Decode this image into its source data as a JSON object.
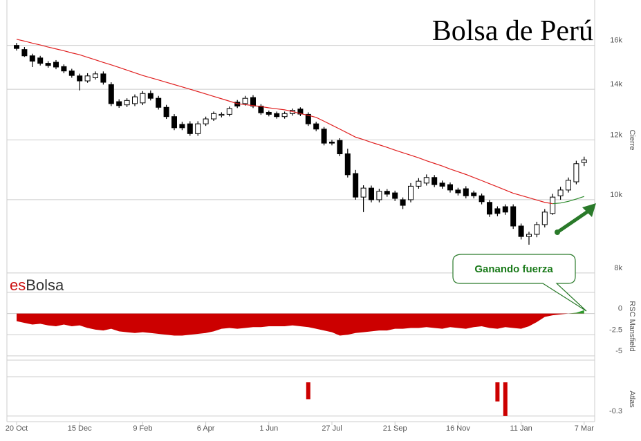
{
  "chart_data": [
    {
      "type": "candlestick",
      "title": "Bolsa de Perú",
      "logo": {
        "prefix": "es",
        "name": "Bolsa"
      },
      "y_label": "Cierre",
      "log_scale": true,
      "grid": true,
      "categories": [
        "20 Oct",
        null,
        null,
        null,
        null,
        null,
        null,
        null,
        "15 Dec",
        null,
        null,
        null,
        null,
        null,
        null,
        null,
        "9 Feb",
        null,
        null,
        null,
        null,
        null,
        null,
        null,
        "6 Apr",
        null,
        null,
        null,
        null,
        null,
        null,
        null,
        "1 Jun",
        null,
        null,
        null,
        null,
        null,
        null,
        null,
        "27 Jul",
        null,
        null,
        null,
        null,
        null,
        null,
        null,
        "21 Sep",
        null,
        null,
        null,
        null,
        null,
        null,
        null,
        "16 Nov",
        null,
        null,
        null,
        null,
        null,
        null,
        null,
        "11 Jan",
        null,
        null,
        null,
        null,
        null,
        null,
        null,
        "7 Mar"
      ],
      "open": [
        16000,
        15800,
        15500,
        15400,
        15150,
        15200,
        15000,
        14800,
        14580,
        14360,
        14500,
        14670,
        14200,
        13480,
        13350,
        13400,
        13430,
        13820,
        13620,
        13250,
        12880,
        12580,
        12600,
        12230,
        12600,
        12790,
        12930,
        12970,
        13460,
        13400,
        13650,
        13300,
        13050,
        13000,
        12880,
        13000,
        13180,
        12970,
        12600,
        12400,
        11920,
        11980,
        11500,
        10830,
        10080,
        10360,
        10000,
        10260,
        10210,
        10000,
        10000,
        10420,
        10520,
        10700,
        10520,
        10470,
        10300,
        10340,
        10210,
        10120,
        9920,
        9730,
        9790,
        9790,
        9230,
        8940,
        9000,
        9270,
        9590,
        10120,
        10300,
        10560,
        11200
      ],
      "high": [
        16120,
        15920,
        15600,
        15500,
        15250,
        15300,
        15100,
        14900,
        14680,
        14700,
        14780,
        14780,
        14300,
        13580,
        13620,
        13780,
        13920,
        13950,
        13720,
        13350,
        12980,
        12680,
        12700,
        12700,
        12880,
        13080,
        13050,
        13280,
        13550,
        13720,
        13750,
        13380,
        13120,
        13080,
        13080,
        13200,
        13250,
        13050,
        12680,
        12480,
        12000,
        12060,
        11680,
        10950,
        10450,
        10440,
        10340,
        10330,
        10280,
        10070,
        10520,
        10680,
        10800,
        10780,
        10600,
        10540,
        10370,
        10420,
        10280,
        10190,
        9990,
        9800,
        9860,
        9860,
        9300,
        9070,
        9350,
        9720,
        10180,
        10400,
        10700,
        11260,
        11400
      ],
      "low": [
        15750,
        15450,
        14980,
        15050,
        14950,
        14880,
        14700,
        14500,
        13950,
        14280,
        14420,
        14200,
        13300,
        13230,
        13260,
        13300,
        13340,
        13530,
        13160,
        12790,
        12360,
        12360,
        12150,
        12150,
        12520,
        12710,
        12850,
        12890,
        13220,
        13320,
        13220,
        12950,
        12890,
        12800,
        12800,
        12920,
        12900,
        12520,
        12320,
        11800,
        11800,
        11420,
        10700,
        10000,
        9630,
        9920,
        9920,
        10090,
        9960,
        9720,
        9920,
        10340,
        10440,
        10390,
        10340,
        10220,
        10130,
        10040,
        10040,
        9860,
        9490,
        9510,
        9550,
        9150,
        8860,
        8720,
        8920,
        9190,
        9550,
        10000,
        10220,
        10480,
        11080
      ],
      "close": [
        15850,
        15500,
        15250,
        15150,
        15050,
        14980,
        14800,
        14600,
        14360,
        14580,
        14670,
        14300,
        13400,
        13320,
        13530,
        13680,
        13820,
        13620,
        13250,
        12880,
        12450,
        12450,
        12230,
        12600,
        12790,
        13000,
        12970,
        13200,
        13300,
        13620,
        13300,
        13030,
        12970,
        12880,
        13000,
        13130,
        12980,
        12600,
        12400,
        11880,
        11880,
        11500,
        10790,
        10080,
        10360,
        10000,
        10260,
        10170,
        10040,
        9830,
        10420,
        10580,
        10700,
        10470,
        10420,
        10300,
        10210,
        10120,
        10120,
        9940,
        9570,
        9590,
        9630,
        9230,
        8940,
        9000,
        9270,
        9630,
        10080,
        10300,
        10610,
        11160,
        11290
      ],
      "up_color": "#ffffff",
      "down_color": "#000000",
      "series": [
        {
          "color": "#e02020",
          "values": [
            16300,
            16210,
            16110,
            16020,
            15920,
            15830,
            15740,
            15640,
            15550,
            15430,
            15310,
            15190,
            15080,
            14960,
            14840,
            14720,
            14600,
            14500,
            14400,
            14300,
            14200,
            14100,
            14000,
            13900,
            13800,
            13700,
            13600,
            13500,
            13400,
            13360,
            13320,
            13280,
            13230,
            13190,
            13150,
            13080,
            13000,
            12930,
            12850,
            12700,
            12550,
            12400,
            12250,
            12100,
            12010,
            11910,
            11820,
            11730,
            11630,
            11540,
            11450,
            11360,
            11260,
            11170,
            11080,
            10980,
            10890,
            10800,
            10700,
            10600,
            10500,
            10400,
            10300,
            10200,
            10130,
            10060,
            9990,
            9920,
            9880,
            null,
            null,
            null,
            null
          ]
        },
        {
          "color": "#2a8a2a",
          "values": [
            null,
            null,
            null,
            null,
            null,
            null,
            null,
            null,
            null,
            null,
            null,
            null,
            null,
            null,
            null,
            null,
            null,
            null,
            null,
            null,
            null,
            null,
            null,
            null,
            null,
            null,
            null,
            null,
            null,
            null,
            null,
            null,
            null,
            null,
            null,
            null,
            null,
            null,
            null,
            null,
            null,
            null,
            null,
            null,
            null,
            null,
            null,
            null,
            null,
            null,
            null,
            null,
            null,
            null,
            null,
            null,
            null,
            null,
            null,
            null,
            null,
            null,
            null,
            null,
            null,
            null,
            null,
            null,
            9880,
            9900,
            9950,
            10020,
            10100
          ]
        }
      ],
      "annotation": "Ganando fuerza",
      "annotation_color": "#1a7a1a",
      "ylim": [
        7915,
        18180
      ],
      "yticks": [
        {
          "value": 8000,
          "label": "8k"
        },
        {
          "value": 10000,
          "label": "10k"
        },
        {
          "value": 12000,
          "label": "12k"
        },
        {
          "value": 14000,
          "label": "14k"
        },
        {
          "value": 16000,
          "label": "16k"
        }
      ]
    },
    {
      "type": "area",
      "y_label": "RSC Mansfield",
      "grid": true,
      "color": "#cc0000",
      "positive_color": "#2a9a2a",
      "values": [
        -0.9,
        -1.1,
        -1.3,
        -1.2,
        -1.4,
        -1.5,
        -1.3,
        -1.5,
        -1.4,
        -1.7,
        -1.9,
        -2.0,
        -1.8,
        -2.1,
        -2.2,
        -2.3,
        -2.2,
        -2.3,
        -2.4,
        -2.5,
        -2.6,
        -2.6,
        -2.5,
        -2.4,
        -2.3,
        -2.1,
        -1.8,
        -1.7,
        -1.8,
        -1.7,
        -1.6,
        -1.6,
        -1.5,
        -1.5,
        -1.5,
        -1.4,
        -1.5,
        -1.6,
        -1.8,
        -2.0,
        -2.2,
        -2.6,
        -2.5,
        -2.3,
        -2.2,
        -2.1,
        -2.0,
        -2.0,
        -1.8,
        -1.8,
        -1.7,
        -1.7,
        -1.6,
        -1.7,
        -1.8,
        -1.6,
        -1.7,
        -1.8,
        -1.6,
        -1.5,
        -1.7,
        -1.8,
        -1.6,
        -1.7,
        -1.8,
        -1.5,
        -1.0,
        -0.4,
        -0.2,
        -0.1,
        0,
        0.1,
        0.4
      ],
      "ylim": [
        -5.5,
        2.5
      ],
      "yticks": [
        0,
        -2.5,
        -5
      ]
    },
    {
      "type": "bar",
      "y_label": "Atlas",
      "grid": true,
      "color": "#cc0000",
      "values": [
        0,
        0,
        0,
        0,
        0,
        0,
        0,
        0,
        0,
        0,
        0,
        0,
        0,
        0,
        0,
        0,
        0,
        0,
        0,
        0,
        0,
        0,
        0,
        0,
        0,
        0,
        0,
        0,
        0,
        0,
        0,
        0,
        0,
        0,
        0,
        0,
        0,
        -0.15,
        0,
        0,
        0,
        0,
        0,
        0,
        0,
        0,
        0,
        0,
        0,
        0,
        0,
        0,
        0,
        0,
        0,
        0,
        0,
        0,
        0,
        0,
        0,
        -0.17,
        -0.3,
        0,
        0,
        0,
        0,
        0,
        0,
        0,
        0,
        0,
        0
      ],
      "ylim": [
        -0.35,
        0.05
      ],
      "yticks": [
        -0.3
      ]
    }
  ]
}
